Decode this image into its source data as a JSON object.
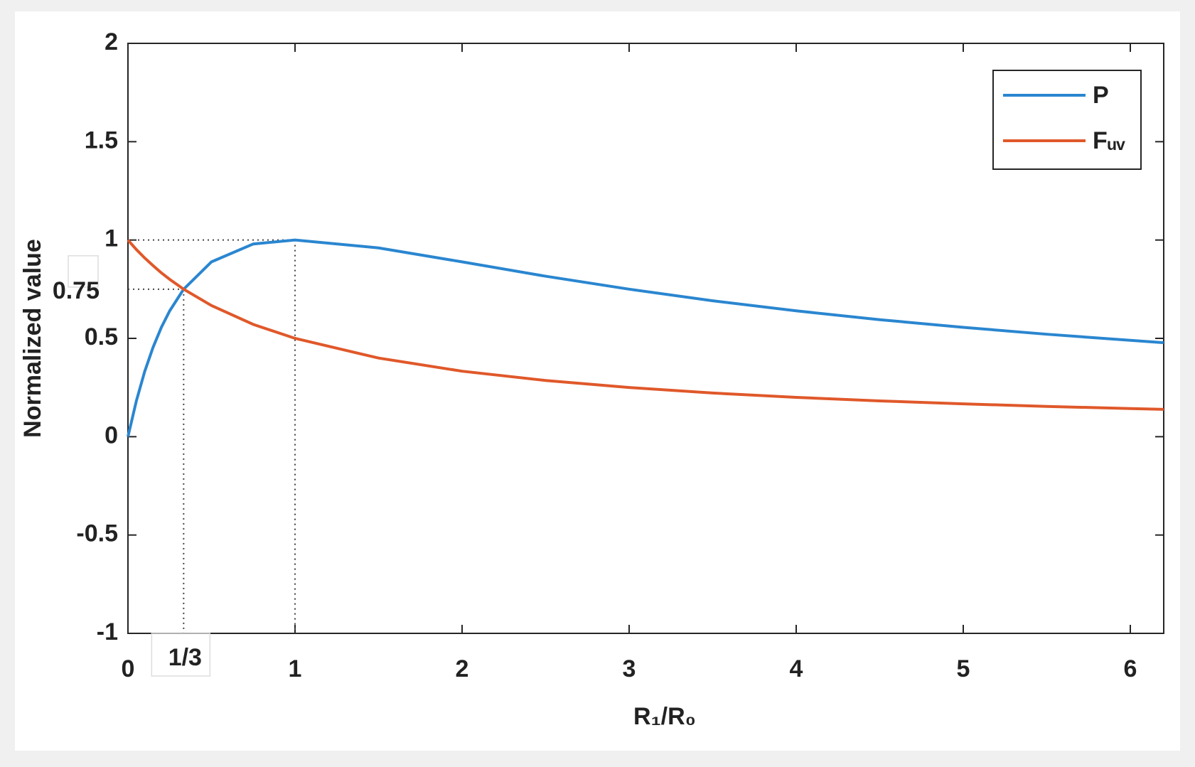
{
  "chart_data": {
    "type": "line",
    "xlabel": "R₁/R₀",
    "ylabel": "Normalized value",
    "x": [
      0,
      0.05,
      0.1,
      0.15,
      0.2,
      0.25,
      0.3333,
      0.5,
      0.75,
      1,
      1.5,
      2,
      2.5,
      3,
      3.5,
      4,
      4.5,
      5,
      5.5,
      6,
      6.2
    ],
    "series": [
      {
        "name": "P",
        "color": "#2a86d0",
        "values": [
          0,
          0.181,
          0.331,
          0.454,
          0.556,
          0.64,
          0.75,
          0.889,
          0.98,
          1,
          0.96,
          0.889,
          0.816,
          0.75,
          0.691,
          0.64,
          0.595,
          0.556,
          0.521,
          0.49,
          0.478
        ]
      },
      {
        "name": "Fᵤᵥ",
        "color": "#e0582a",
        "values": [
          1,
          0.952,
          0.909,
          0.87,
          0.833,
          0.8,
          0.75,
          0.667,
          0.571,
          0.5,
          0.4,
          0.333,
          0.286,
          0.25,
          0.222,
          0.2,
          0.182,
          0.167,
          0.154,
          0.143,
          0.139
        ]
      }
    ],
    "xlim": [
      0,
      6.2
    ],
    "ylim": [
      -1,
      2
    ],
    "xticks": [
      0,
      1,
      2,
      3,
      4,
      5,
      6
    ],
    "yticks": [
      -1,
      -0.5,
      0,
      0.5,
      1,
      1.5,
      2
    ],
    "annotations": [
      {
        "x": 0.3333,
        "y": 0.75,
        "x_label": "1/3",
        "y_label": "0.75"
      },
      {
        "x": 1,
        "y": 1
      }
    ],
    "legend": "top-right",
    "grid": false
  }
}
